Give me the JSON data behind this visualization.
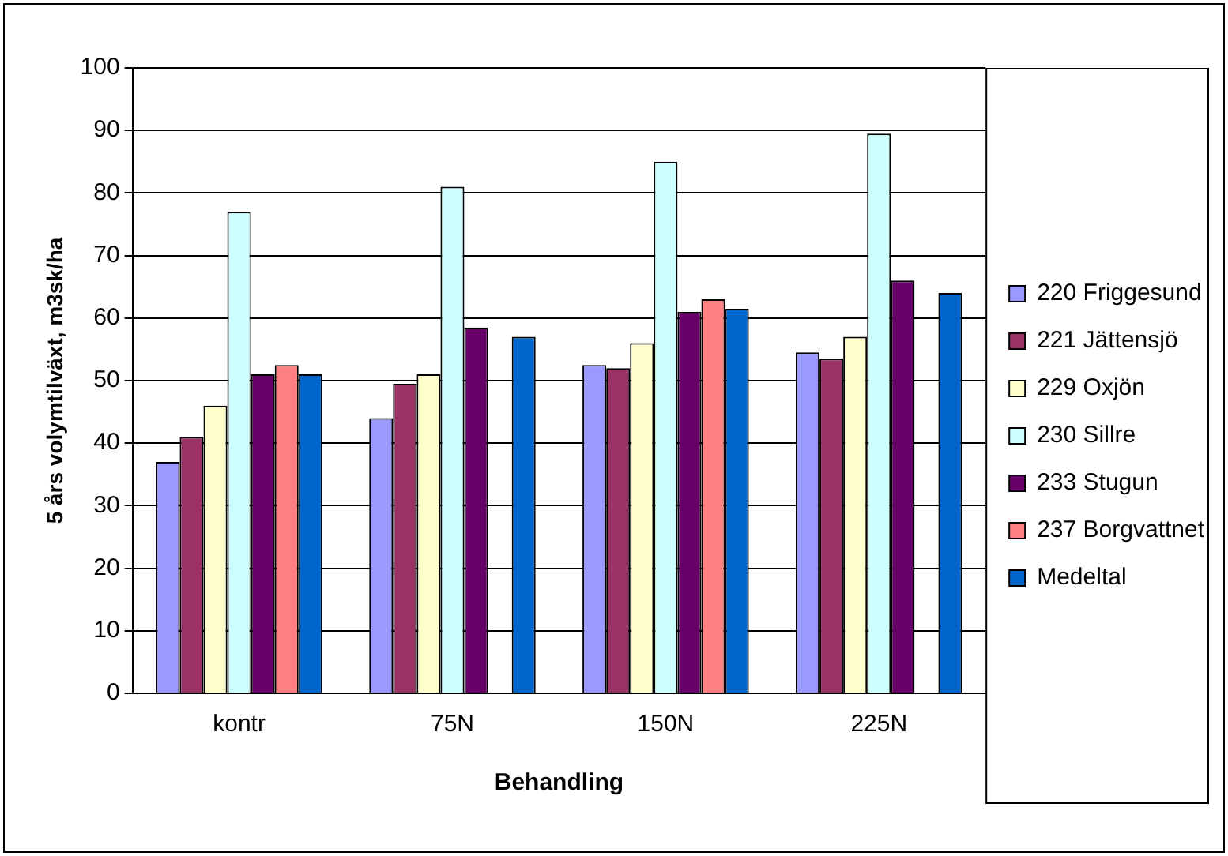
{
  "chart_data": {
    "type": "bar",
    "xlabel": "Behandling",
    "ylabel": "5 års volymtilväxt, m3sk/ha",
    "categories": [
      "kontr",
      "75N",
      "150N",
      "225N"
    ],
    "series": [
      {
        "name": "220 Friggesund",
        "color": "#9999ff",
        "values": [
          37,
          44,
          52.5,
          54.5
        ]
      },
      {
        "name": "221 Jättensjö",
        "color": "#993366",
        "values": [
          41,
          49.5,
          52,
          53.5
        ]
      },
      {
        "name": "229 Oxjön",
        "color": "#ffffcc",
        "values": [
          46,
          51,
          56,
          57
        ]
      },
      {
        "name": "230 Sillre",
        "color": "#ccffff",
        "values": [
          77,
          81,
          85,
          89.5
        ]
      },
      {
        "name": "233 Stugun",
        "color": "#660066",
        "values": [
          51,
          58.5,
          61,
          66
        ]
      },
      {
        "name": "237 Borgvattnet",
        "color": "#ff8080",
        "values": [
          52.5,
          null,
          63,
          null
        ]
      },
      {
        "name": "Medeltal",
        "color": "#0066cc",
        "values": [
          51,
          57,
          61.5,
          64
        ]
      }
    ],
    "ylim": [
      0,
      100
    ],
    "yticks": [
      0,
      10,
      20,
      30,
      40,
      50,
      60,
      70,
      80,
      90,
      100
    ],
    "grid": "y",
    "legend": "right"
  }
}
